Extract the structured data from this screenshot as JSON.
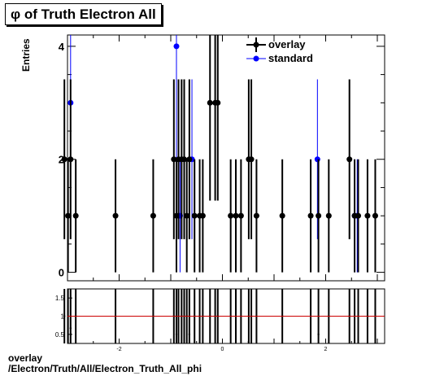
{
  "title": "φ of Truth Electron All",
  "footer": {
    "label": "overlay",
    "path": "/Electron/Truth/All/Electron_Truth_All_phi"
  },
  "colors": {
    "overlay": "#000000",
    "standard": "#0000ff",
    "ratio_line": "#cc0000"
  },
  "chart_data": [
    {
      "type": "scatter",
      "title": "φ of Truth Electron All",
      "ylabel": "Entries",
      "xlabel": "",
      "xlim": [
        -3.0,
        3.1416
      ],
      "ylim": [
        -0.15,
        4.2
      ],
      "x_ticks": [
        -2,
        0,
        2
      ],
      "y_ticks": [
        0,
        2,
        4
      ],
      "legend_placement": "top-right",
      "grid": false,
      "series": [
        {
          "name": "overlay",
          "x": [
            -3.06,
            -2.99,
            -2.94,
            -2.84,
            -2.07,
            -1.34,
            -0.94,
            -0.89,
            -0.85,
            -0.79,
            -0.74,
            -0.69,
            -0.64,
            -0.54,
            -0.44,
            -0.38,
            -0.24,
            -0.14,
            -0.09,
            0.16,
            0.26,
            0.36,
            0.51,
            0.56,
            0.66,
            1.16,
            1.71,
            1.86,
            2.06,
            2.46,
            2.56,
            2.63,
            2.81,
            2.96
          ],
          "y": [
            2,
            1,
            2,
            1,
            1,
            1,
            2,
            1,
            2,
            2,
            2,
            1,
            2,
            1,
            1,
            1,
            3,
            3,
            3,
            1,
            1,
            1,
            2,
            2,
            1,
            1,
            1,
            1,
            1,
            2,
            1,
            1,
            1,
            1
          ]
        },
        {
          "name": "standard",
          "x": [
            -2.94,
            -0.89,
            -0.82,
            -0.59,
            1.84,
            2.56,
            2.61
          ],
          "y": [
            3,
            4,
            1,
            2,
            2,
            1,
            1
          ]
        }
      ]
    },
    {
      "type": "scatter",
      "title": "",
      "xlabel": "",
      "ylabel": "",
      "xlim": [
        -3.0,
        3.1416
      ],
      "ylim": [
        0.25,
        1.75
      ],
      "x_ticks": [
        -2,
        0,
        2
      ],
      "y_ticks": [
        0.5,
        1,
        1.5
      ],
      "reference_line": 1,
      "series": [
        {
          "x": [
            -3.06,
            -2.99,
            -2.94,
            -2.84,
            -2.07,
            -1.34,
            -0.94,
            -0.89,
            -0.85,
            -0.79,
            -0.74,
            -0.69,
            -0.64,
            -0.54,
            -0.44,
            -0.38,
            -0.24,
            -0.14,
            -0.09,
            0.16,
            0.26,
            0.36,
            0.51,
            0.56,
            0.66,
            1.16,
            1.71,
            1.86,
            2.06,
            2.46,
            2.56,
            2.63,
            2.81,
            2.96
          ],
          "y": [
            1,
            1,
            0.67,
            1,
            1,
            1,
            1,
            0.5,
            1,
            1,
            1,
            1,
            0.5,
            1,
            1,
            1,
            1,
            1,
            1,
            1,
            1,
            1,
            1,
            1,
            1,
            1,
            1,
            0.5,
            1,
            1,
            1,
            1,
            1,
            1
          ]
        }
      ]
    }
  ]
}
